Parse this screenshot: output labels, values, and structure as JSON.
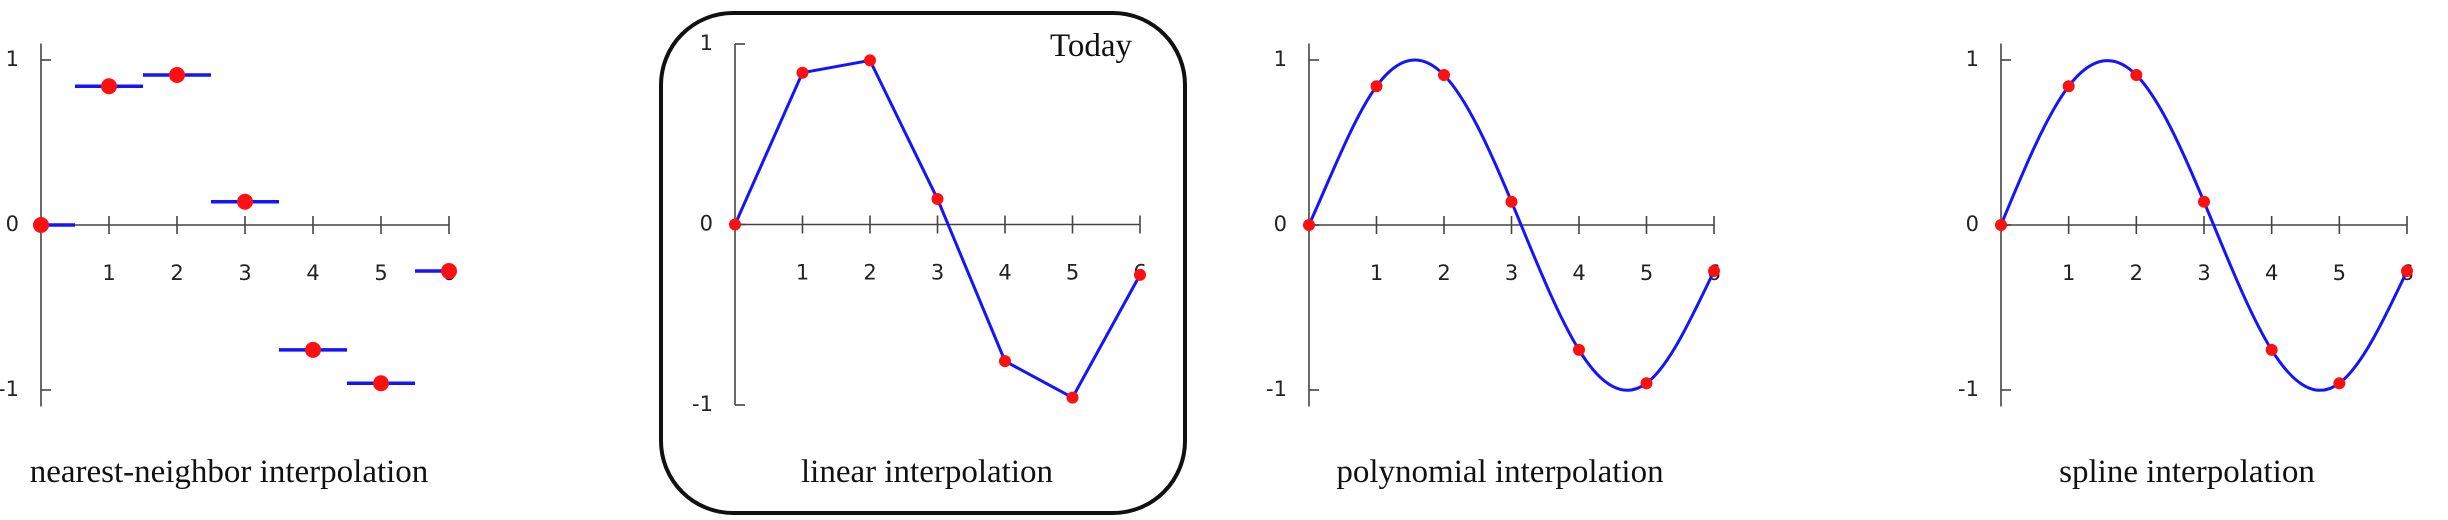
{
  "chart_data": [
    {
      "type": "step",
      "title": "nearest-neighbor interpolation",
      "x": [
        0,
        1,
        2,
        3,
        4,
        5,
        6
      ],
      "values": [
        0,
        0.841,
        0.909,
        0.141,
        -0.757,
        -0.959,
        -0.279
      ],
      "color": "#1414ff",
      "marker_color": "#ff1010",
      "xlim": [
        0,
        6
      ],
      "ylim": [
        -1.1,
        1.1
      ],
      "xticks": [
        1,
        2,
        3,
        4,
        5,
        6
      ],
      "yticks": [
        -1,
        0,
        1
      ]
    },
    {
      "type": "line",
      "title": "linear interpolation",
      "annotation": "Today",
      "x": [
        0,
        1,
        2,
        3,
        4,
        5,
        6
      ],
      "values": [
        0,
        0.841,
        0.909,
        0.141,
        -0.757,
        -0.959,
        -0.279
      ],
      "color": "#1414ff",
      "marker_color": "#ff1010",
      "xlim": [
        0,
        6
      ],
      "ylim": [
        -1,
        1
      ],
      "xticks": [
        1,
        2,
        3,
        4,
        5,
        6
      ],
      "yticks": [
        -1,
        0,
        1
      ]
    },
    {
      "type": "polynomial",
      "title": "polynomial interpolation",
      "x": [
        0,
        1,
        2,
        3,
        4,
        5,
        6
      ],
      "values": [
        0,
        0.841,
        0.909,
        0.141,
        -0.757,
        -0.959,
        -0.279
      ],
      "color": "#1414ff",
      "marker_color": "#ff1010",
      "xlim": [
        0,
        6
      ],
      "ylim": [
        -1.1,
        1.1
      ],
      "xticks": [
        1,
        2,
        3,
        4,
        5,
        6
      ],
      "yticks": [
        -1,
        0,
        1
      ]
    },
    {
      "type": "spline",
      "title": "spline interpolation",
      "x": [
        0,
        1,
        2,
        3,
        4,
        5,
        6
      ],
      "values": [
        0,
        0.841,
        0.909,
        0.141,
        -0.757,
        -0.959,
        -0.279
      ],
      "color": "#1414ff",
      "marker_color": "#ff1010",
      "xlim": [
        0,
        6
      ],
      "ylim": [
        -1.1,
        1.1
      ],
      "xticks": [
        1,
        2,
        3,
        4,
        5,
        6
      ],
      "yticks": [
        -1,
        0,
        1
      ]
    }
  ]
}
